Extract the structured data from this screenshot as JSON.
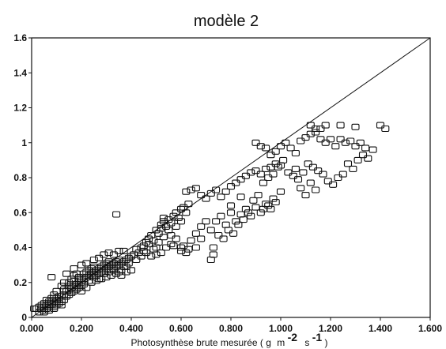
{
  "chart_data": {
    "type": "scatter",
    "title": "modèle 2",
    "xlabel_prefix": "Photosynthèse brute mesurée (",
    "xlabel_g": "g",
    "xlabel_m": "m",
    "xlabel_m_exp": "-2",
    "xlabel_s": "s",
    "xlabel_s_exp": "-1",
    "xlabel_suffix": ")",
    "ylabel": "",
    "xlim": [
      0,
      1.6
    ],
    "ylim": [
      0,
      1.6
    ],
    "xticks": [
      "0.000",
      "0.200",
      "0.400",
      "0.600",
      "0.800",
      "1.000",
      "1.200",
      "1.400",
      "1.600"
    ],
    "yticks": [
      "0",
      "0.2",
      "0.4",
      "0.6",
      "0.8",
      "1",
      "1.2",
      "1.4",
      "1.6"
    ],
    "reference_line": [
      [
        0,
        0
      ],
      [
        1.6,
        1.6
      ]
    ],
    "grid": false,
    "marker": "open-square",
    "points": [
      [
        0.01,
        0.05
      ],
      [
        0.02,
        0.05
      ],
      [
        0.03,
        0.06
      ],
      [
        0.04,
        0.05
      ],
      [
        0.04,
        0.07
      ],
      [
        0.05,
        0.06
      ],
      [
        0.05,
        0.08
      ],
      [
        0.06,
        0.07
      ],
      [
        0.06,
        0.05
      ],
      [
        0.07,
        0.08
      ],
      [
        0.07,
        0.06
      ],
      [
        0.08,
        0.07
      ],
      [
        0.08,
        0.09
      ],
      [
        0.09,
        0.08
      ],
      [
        0.09,
        0.06
      ],
      [
        0.1,
        0.07
      ],
      [
        0.1,
        0.09
      ],
      [
        0.11,
        0.08
      ],
      [
        0.11,
        0.1
      ],
      [
        0.12,
        0.09
      ],
      [
        0.12,
        0.07
      ],
      [
        0.13,
        0.1
      ],
      [
        0.03,
        0.03
      ],
      [
        0.05,
        0.04
      ],
      [
        0.07,
        0.04
      ],
      [
        0.09,
        0.05
      ],
      [
        0.06,
        0.1
      ],
      [
        0.08,
        0.11
      ],
      [
        0.1,
        0.11
      ],
      [
        0.12,
        0.12
      ],
      [
        0.13,
        0.13
      ],
      [
        0.14,
        0.12
      ],
      [
        0.14,
        0.15
      ],
      [
        0.15,
        0.13
      ],
      [
        0.15,
        0.16
      ],
      [
        0.16,
        0.14
      ],
      [
        0.16,
        0.17
      ],
      [
        0.17,
        0.15
      ],
      [
        0.17,
        0.18
      ],
      [
        0.18,
        0.16
      ],
      [
        0.18,
        0.19
      ],
      [
        0.19,
        0.17
      ],
      [
        0.19,
        0.2
      ],
      [
        0.2,
        0.18
      ],
      [
        0.2,
        0.21
      ],
      [
        0.15,
        0.2
      ],
      [
        0.16,
        0.22
      ],
      [
        0.17,
        0.24
      ],
      [
        0.18,
        0.25
      ],
      [
        0.19,
        0.23
      ],
      [
        0.21,
        0.22
      ],
      [
        0.21,
        0.25
      ],
      [
        0.22,
        0.23
      ],
      [
        0.22,
        0.26
      ],
      [
        0.23,
        0.24
      ],
      [
        0.23,
        0.27
      ],
      [
        0.24,
        0.25
      ],
      [
        0.24,
        0.28
      ],
      [
        0.25,
        0.26
      ],
      [
        0.25,
        0.29
      ],
      [
        0.26,
        0.24
      ],
      [
        0.26,
        0.27
      ],
      [
        0.27,
        0.25
      ],
      [
        0.27,
        0.28
      ],
      [
        0.28,
        0.26
      ],
      [
        0.28,
        0.29
      ],
      [
        0.29,
        0.27
      ],
      [
        0.29,
        0.3
      ],
      [
        0.3,
        0.28
      ],
      [
        0.3,
        0.31
      ],
      [
        0.31,
        0.29
      ],
      [
        0.31,
        0.32
      ],
      [
        0.32,
        0.3
      ],
      [
        0.32,
        0.27
      ],
      [
        0.33,
        0.31
      ],
      [
        0.33,
        0.28
      ],
      [
        0.34,
        0.32
      ],
      [
        0.34,
        0.29
      ],
      [
        0.35,
        0.3
      ],
      [
        0.35,
        0.33
      ],
      [
        0.36,
        0.31
      ],
      [
        0.36,
        0.27
      ],
      [
        0.37,
        0.32
      ],
      [
        0.38,
        0.33
      ],
      [
        0.38,
        0.29
      ],
      [
        0.39,
        0.34
      ],
      [
        0.4,
        0.35
      ],
      [
        0.2,
        0.15
      ],
      [
        0.22,
        0.17
      ],
      [
        0.24,
        0.2
      ],
      [
        0.26,
        0.21
      ],
      [
        0.28,
        0.22
      ],
      [
        0.3,
        0.23
      ],
      [
        0.32,
        0.24
      ],
      [
        0.34,
        0.25
      ],
      [
        0.36,
        0.24
      ],
      [
        0.38,
        0.26
      ],
      [
        0.4,
        0.27
      ],
      [
        0.14,
        0.25
      ],
      [
        0.13,
        0.2
      ],
      [
        0.12,
        0.18
      ],
      [
        0.1,
        0.15
      ],
      [
        0.09,
        0.13
      ],
      [
        0.08,
        0.23
      ],
      [
        0.17,
        0.28
      ],
      [
        0.2,
        0.3
      ],
      [
        0.22,
        0.31
      ],
      [
        0.25,
        0.33
      ],
      [
        0.27,
        0.34
      ],
      [
        0.29,
        0.36
      ],
      [
        0.31,
        0.37
      ],
      [
        0.33,
        0.36
      ],
      [
        0.35,
        0.38
      ],
      [
        0.37,
        0.38
      ],
      [
        0.34,
        0.59
      ],
      [
        0.41,
        0.36
      ],
      [
        0.42,
        0.39
      ],
      [
        0.43,
        0.37
      ],
      [
        0.44,
        0.4
      ],
      [
        0.45,
        0.41
      ],
      [
        0.46,
        0.43
      ],
      [
        0.47,
        0.45
      ],
      [
        0.48,
        0.47
      ],
      [
        0.49,
        0.44
      ],
      [
        0.5,
        0.5
      ],
      [
        0.51,
        0.48
      ],
      [
        0.52,
        0.51
      ],
      [
        0.52,
        0.53
      ],
      [
        0.53,
        0.55
      ],
      [
        0.53,
        0.57
      ],
      [
        0.54,
        0.52
      ],
      [
        0.55,
        0.56
      ],
      [
        0.56,
        0.54
      ],
      [
        0.57,
        0.58
      ],
      [
        0.58,
        0.6
      ],
      [
        0.59,
        0.57
      ],
      [
        0.6,
        0.62
      ],
      [
        0.61,
        0.63
      ],
      [
        0.62,
        0.6
      ],
      [
        0.63,
        0.65
      ],
      [
        0.62,
        0.72
      ],
      [
        0.64,
        0.73
      ],
      [
        0.66,
        0.74
      ],
      [
        0.68,
        0.7
      ],
      [
        0.7,
        0.68
      ],
      [
        0.72,
        0.71
      ],
      [
        0.74,
        0.73
      ],
      [
        0.76,
        0.69
      ],
      [
        0.78,
        0.72
      ],
      [
        0.8,
        0.75
      ],
      [
        0.82,
        0.77
      ],
      [
        0.84,
        0.79
      ],
      [
        0.86,
        0.81
      ],
      [
        0.88,
        0.83
      ],
      [
        0.9,
        0.84
      ],
      [
        0.92,
        0.82
      ],
      [
        0.94,
        0.85
      ],
      [
        0.96,
        0.86
      ],
      [
        0.98,
        0.88
      ],
      [
        1.0,
        0.87
      ],
      [
        0.46,
        0.37
      ],
      [
        0.48,
        0.35
      ],
      [
        0.5,
        0.36
      ],
      [
        0.52,
        0.37
      ],
      [
        0.54,
        0.4
      ],
      [
        0.56,
        0.42
      ],
      [
        0.58,
        0.45
      ],
      [
        0.6,
        0.4
      ],
      [
        0.6,
        0.38
      ],
      [
        0.61,
        0.41
      ],
      [
        0.62,
        0.37
      ],
      [
        0.63,
        0.39
      ],
      [
        0.64,
        0.44
      ],
      [
        0.66,
        0.48
      ],
      [
        0.68,
        0.52
      ],
      [
        0.7,
        0.55
      ],
      [
        0.72,
        0.5
      ],
      [
        0.74,
        0.55
      ],
      [
        0.76,
        0.58
      ],
      [
        0.78,
        0.53
      ],
      [
        0.8,
        0.6
      ],
      [
        0.82,
        0.55
      ],
      [
        0.84,
        0.59
      ],
      [
        0.86,
        0.62
      ],
      [
        0.88,
        0.58
      ],
      [
        0.9,
        0.63
      ],
      [
        0.92,
        0.6
      ],
      [
        0.94,
        0.65
      ],
      [
        0.96,
        0.62
      ],
      [
        0.98,
        0.66
      ],
      [
        0.72,
        0.33
      ],
      [
        0.73,
        0.36
      ],
      [
        0.73,
        0.4
      ],
      [
        0.75,
        0.47
      ],
      [
        0.77,
        0.45
      ],
      [
        0.79,
        0.5
      ],
      [
        0.81,
        0.48
      ],
      [
        0.83,
        0.53
      ],
      [
        0.85,
        0.56
      ],
      [
        0.87,
        0.6
      ],
      [
        0.89,
        0.67
      ],
      [
        0.91,
        0.7
      ],
      [
        0.93,
        0.77
      ],
      [
        0.95,
        0.8
      ],
      [
        0.97,
        0.82
      ],
      [
        0.99,
        0.86
      ],
      [
        1.01,
        0.9
      ],
      [
        1.03,
        0.83
      ],
      [
        1.05,
        0.81
      ],
      [
        1.07,
        0.79
      ],
      [
        1.09,
        0.83
      ],
      [
        1.11,
        0.88
      ],
      [
        1.13,
        0.86
      ],
      [
        1.15,
        0.84
      ],
      [
        1.17,
        0.82
      ],
      [
        1.19,
        0.78
      ],
      [
        1.21,
        0.76
      ],
      [
        1.23,
        0.8
      ],
      [
        1.25,
        0.82
      ],
      [
        1.27,
        0.88
      ],
      [
        1.29,
        0.85
      ],
      [
        1.31,
        0.9
      ],
      [
        1.33,
        0.93
      ],
      [
        1.35,
        0.91
      ],
      [
        1.37,
        0.96
      ],
      [
        0.9,
        1.0
      ],
      [
        0.92,
        0.98
      ],
      [
        0.94,
        0.97
      ],
      [
        0.96,
        0.93
      ],
      [
        0.98,
        0.95
      ],
      [
        1.0,
        0.98
      ],
      [
        1.02,
        1.0
      ],
      [
        1.04,
        0.97
      ],
      [
        1.06,
        0.94
      ],
      [
        1.08,
        1.01
      ],
      [
        1.1,
        1.03
      ],
      [
        1.12,
        1.05
      ],
      [
        1.14,
        1.08
      ],
      [
        1.16,
        1.02
      ],
      [
        1.18,
        1.0
      ],
      [
        1.2,
        1.02
      ],
      [
        1.22,
        0.98
      ],
      [
        1.24,
        1.02
      ],
      [
        1.26,
        1.0
      ],
      [
        1.28,
        1.01
      ],
      [
        1.3,
        0.98
      ],
      [
        1.32,
        1.0
      ],
      [
        1.34,
        0.97
      ],
      [
        1.12,
        1.1
      ],
      [
        1.14,
        1.06
      ],
      [
        1.16,
        1.08
      ],
      [
        1.18,
        1.1
      ],
      [
        1.24,
        1.1
      ],
      [
        1.3,
        1.09
      ],
      [
        1.4,
        1.1
      ],
      [
        1.42,
        1.08
      ],
      [
        1.06,
        0.85
      ],
      [
        1.08,
        0.74
      ],
      [
        1.1,
        0.7
      ],
      [
        1.12,
        0.77
      ],
      [
        1.14,
        0.73
      ],
      [
        0.93,
        0.62
      ],
      [
        0.95,
        0.64
      ],
      [
        0.97,
        0.68
      ],
      [
        1.0,
        0.72
      ],
      [
        0.84,
        0.69
      ],
      [
        0.8,
        0.64
      ],
      [
        0.68,
        0.45
      ],
      [
        0.66,
        0.4
      ],
      [
        0.57,
        0.41
      ],
      [
        0.55,
        0.5
      ],
      [
        0.53,
        0.46
      ],
      [
        0.51,
        0.43
      ],
      [
        0.49,
        0.39
      ],
      [
        0.47,
        0.42
      ],
      [
        0.45,
        0.38
      ],
      [
        0.05,
        0.03
      ],
      [
        0.07,
        0.09
      ],
      [
        0.09,
        0.11
      ],
      [
        0.11,
        0.12
      ],
      [
        0.13,
        0.16
      ],
      [
        0.15,
        0.18
      ],
      [
        0.17,
        0.21
      ],
      [
        0.19,
        0.22
      ],
      [
        0.21,
        0.19
      ],
      [
        0.23,
        0.21
      ],
      [
        0.25,
        0.23
      ],
      [
        0.27,
        0.22
      ],
      [
        0.29,
        0.25
      ],
      [
        0.31,
        0.26
      ],
      [
        0.33,
        0.27
      ],
      [
        0.35,
        0.26
      ],
      [
        0.37,
        0.29
      ],
      [
        0.39,
        0.31
      ],
      [
        0.42,
        0.33
      ],
      [
        0.44,
        0.35
      ],
      [
        0.5,
        0.4
      ],
      [
        0.56,
        0.47
      ],
      [
        0.58,
        0.52
      ],
      [
        0.6,
        0.55
      ]
    ]
  }
}
